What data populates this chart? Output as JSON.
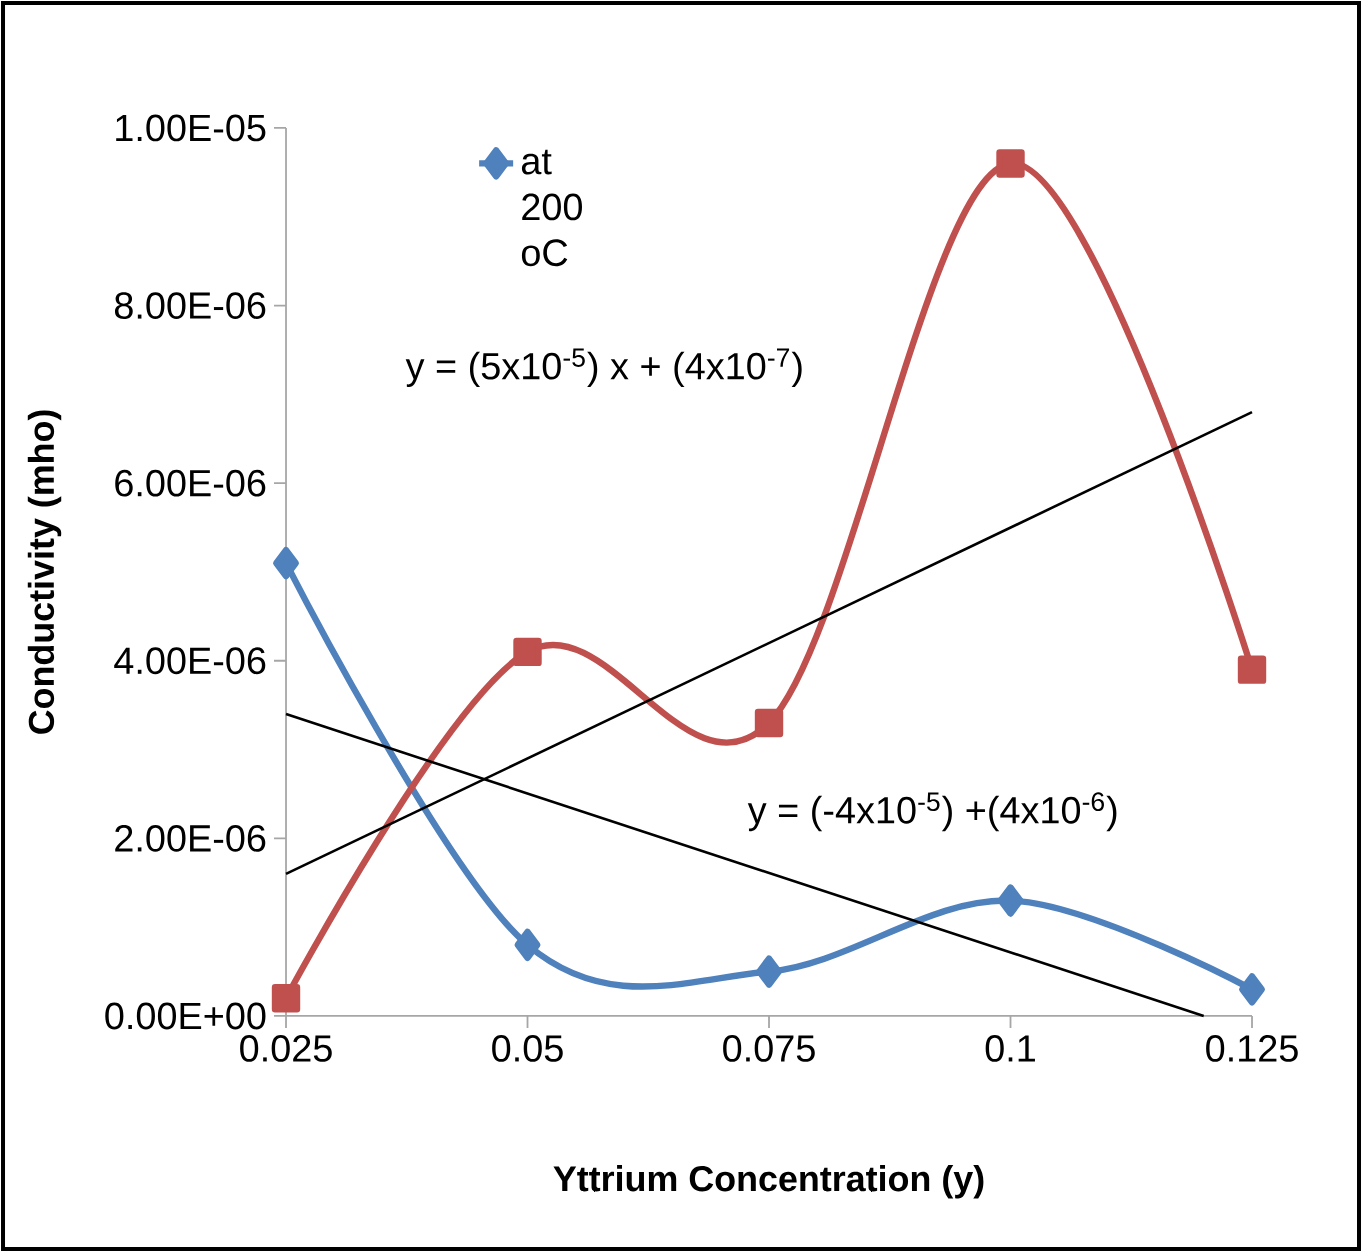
{
  "chart_data": {
    "type": "line",
    "xlabel": "Yttrium Concentration (y)",
    "ylabel": "Conductivity (mho)",
    "xlim": [
      0.025,
      0.125
    ],
    "xticks": [
      0.025,
      0.05,
      0.075,
      0.1,
      0.125
    ],
    "ylim": [
      0,
      1e-05
    ],
    "yticks": [
      {
        "value": 0,
        "label": "0.00E+00"
      },
      {
        "value": 2e-06,
        "label": "2.00E-06"
      },
      {
        "value": 4e-06,
        "label": "4.00E-06"
      },
      {
        "value": 6e-06,
        "label": "6.00E-06"
      },
      {
        "value": 8e-06,
        "label": "8.00E-06"
      },
      {
        "value": 1e-05,
        "label": "1.00E-05"
      }
    ],
    "x": [
      0.025,
      0.05,
      0.075,
      0.1,
      0.125
    ],
    "series": [
      {
        "name": "at 200 oC",
        "color": "#4f81bd",
        "marker": "diamond",
        "values": [
          5.1e-06,
          8e-07,
          5e-07,
          1.3e-06,
          3e-07
        ]
      },
      {
        "color": "#c0504d",
        "marker": "square",
        "values": [
          2e-07,
          4.1e-06,
          3.3e-06,
          9.6e-06,
          3.9e-06
        ]
      },
      {
        "color": "#000000",
        "marker": "none",
        "x": [
          0.025,
          0.125
        ],
        "values": [
          1.6e-06,
          6.8e-06
        ]
      },
      {
        "color": "#000000",
        "marker": "none",
        "x": [
          0.025,
          0.12
        ],
        "values": [
          3.4e-06,
          0
        ]
      }
    ],
    "annotations": [
      "y = (5x10$^{-5}$) x + (4x10$^{-7}$)",
      "y = (-4x10$^{-5}$) +(4x10$^{-6}$)"
    ],
    "legend": "top left",
    "grid": false
  }
}
